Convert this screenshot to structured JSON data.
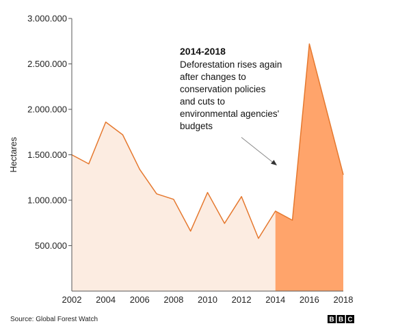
{
  "chart_data": {
    "type": "area",
    "title": "",
    "xlabel": "",
    "ylabel": "Hectares",
    "x": [
      2002,
      2003,
      2004,
      2005,
      2006,
      2007,
      2008,
      2009,
      2010,
      2011,
      2012,
      2013,
      2014,
      2015,
      2016,
      2017,
      2018
    ],
    "series": [
      {
        "values": [
          1500000,
          1400000,
          1860000,
          1720000,
          1340000,
          1070000,
          1010000,
          660000,
          1085000,
          745000,
          1040000,
          580000,
          880000,
          780000,
          2720000,
          2000000,
          1280000
        ]
      }
    ],
    "highlight_range": [
      2014,
      2018
    ],
    "xlim": [
      2002,
      2018
    ],
    "ylim": [
      0,
      3000000
    ],
    "x_ticks": [
      "2002",
      "2004",
      "2006",
      "2008",
      "2010",
      "2012",
      "2014",
      "2016",
      "2018"
    ],
    "x_tick_values": [
      2002,
      2004,
      2006,
      2008,
      2010,
      2012,
      2014,
      2016,
      2018
    ],
    "y_ticks": [
      "500.000",
      "1.000.000",
      "1.500.000",
      "2.000.000",
      "2.500.000",
      "3.000.000"
    ],
    "y_tick_values": [
      500000,
      1000000,
      1500000,
      2000000,
      2500000,
      3000000
    ],
    "grid": false,
    "colors": {
      "line": "#e5782e",
      "fill_light": "#fcece1",
      "fill_highlight": "#ffa46b",
      "axis": "#555555",
      "arrow": "#888888"
    },
    "annotation": {
      "title": "2014-2018",
      "lines": [
        "Deforestation rises again",
        "after changes to",
        "conservation policies",
        "and cuts to",
        "environmental agencies'",
        "budgets"
      ]
    }
  },
  "footer": {
    "source": "Source: Global Forest Watch",
    "logo_letters": [
      "B",
      "B",
      "C"
    ]
  }
}
